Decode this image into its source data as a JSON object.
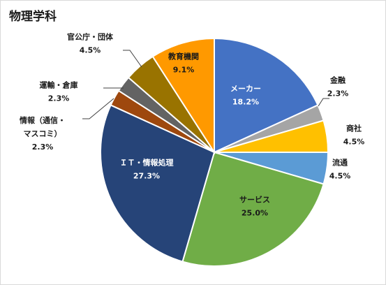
{
  "chart_data": {
    "type": "pie",
    "title": "物理学科",
    "start_angle_deg": 0,
    "direction": "clockwise",
    "slices": [
      {
        "name": "メーカー",
        "value": 18.2,
        "percent_label": "18.2%",
        "color": "#4472C4",
        "label_inside": true,
        "label_color": "#ffffff"
      },
      {
        "name": "金融",
        "value": 2.3,
        "percent_label": "2.3%",
        "color": "#A5A5A5",
        "label_inside": false,
        "label_color": "#1a1a1a"
      },
      {
        "name": "商社",
        "value": 4.5,
        "percent_label": "4.5%",
        "color": "#FFC000",
        "label_inside": false,
        "label_color": "#1a1a1a"
      },
      {
        "name": "流通",
        "value": 4.5,
        "percent_label": "4.5%",
        "color": "#5B9BD5",
        "label_inside": false,
        "label_color": "#1a1a1a"
      },
      {
        "name": "サービス",
        "value": 25.0,
        "percent_label": "25.0%",
        "color": "#70AD47",
        "label_inside": true,
        "label_color": "#1a1a1a"
      },
      {
        "name": "ＩＴ・情報処理",
        "value": 27.3,
        "percent_label": "27.3%",
        "color": "#264478",
        "label_inside": true,
        "label_color": "#ffffff"
      },
      {
        "name_lines": [
          "情報（通信・",
          "マスコミ）"
        ],
        "value": 2.3,
        "percent_label": "2.3%",
        "color": "#9E480E",
        "label_inside": false,
        "label_color": "#1a1a1a"
      },
      {
        "name": "運輸・倉庫",
        "value": 2.3,
        "percent_label": "2.3%",
        "color": "#636363",
        "label_inside": false,
        "label_color": "#1a1a1a"
      },
      {
        "name": "官公庁・団体",
        "value": 4.5,
        "percent_label": "4.5%",
        "color": "#997300",
        "label_inside": false,
        "label_color": "#1a1a1a"
      },
      {
        "name": "教育機関",
        "value": 9.1,
        "percent_label": "9.1%",
        "color": "#FF9900",
        "label_inside": true,
        "label_color": "#1a1a1a"
      }
    ]
  }
}
